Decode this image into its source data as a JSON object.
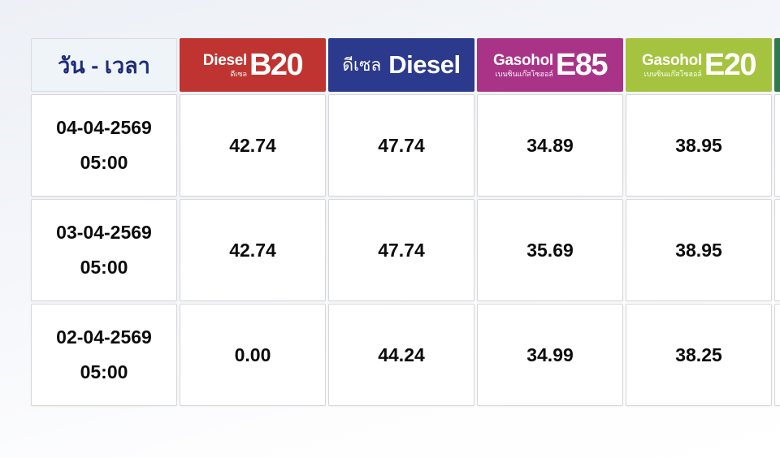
{
  "table": {
    "date_time_header": "วัน - เวลา",
    "columns": [
      {
        "id": "diesel-b20",
        "brand": "Diesel",
        "subtitle": "ดีเซล",
        "code": "B20",
        "color": "#bf3430"
      },
      {
        "id": "diesel",
        "brand": "ดีเซล",
        "code": "Diesel",
        "color": "#2b3a8c"
      },
      {
        "id": "gasohol-e85",
        "brand": "Gasohol",
        "subtitle": "เบนซินแก๊สโซฮอล์",
        "code": "E85",
        "color": "#a93487"
      },
      {
        "id": "gasohol-e20",
        "brand": "Gasohol",
        "subtitle": "เบนซินแก๊สโซฮอล์",
        "code": "E20",
        "color": "#a6c33f"
      },
      {
        "id": "cutoff-column",
        "code": "",
        "color": "#2f7a4b"
      }
    ],
    "rows": [
      {
        "date": "04-04-2569",
        "time": "05:00",
        "prices": [
          "42.74",
          "47.74",
          "34.89",
          "38.95"
        ]
      },
      {
        "date": "03-04-2569",
        "time": "05:00",
        "prices": [
          "42.74",
          "47.74",
          "35.69",
          "38.95"
        ]
      },
      {
        "date": "02-04-2569",
        "time": "05:00",
        "prices": [
          "0.00",
          "44.24",
          "34.99",
          "38.25"
        ]
      }
    ]
  },
  "chart_data": {
    "type": "table",
    "title": "",
    "columns": [
      "วัน - เวลา",
      "Diesel B20",
      "ดีเซล Diesel",
      "Gasohol E85",
      "Gasohol E20"
    ],
    "rows": [
      [
        "04-04-2569 05:00",
        42.74,
        47.74,
        34.89,
        38.95
      ],
      [
        "03-04-2569 05:00",
        42.74,
        47.74,
        35.69,
        38.95
      ],
      [
        "02-04-2569 05:00",
        0.0,
        44.24,
        34.99,
        38.25
      ]
    ]
  },
  "colors": {
    "header_date_bg": "#eff4f9",
    "header_date_text": "#1e2d78",
    "diesel_b20": "#bf3430",
    "diesel": "#2b3a8c",
    "gasohol_e85": "#a93487",
    "gasohol_e20": "#a6c33f",
    "cutoff_column": "#2f7a4b"
  }
}
